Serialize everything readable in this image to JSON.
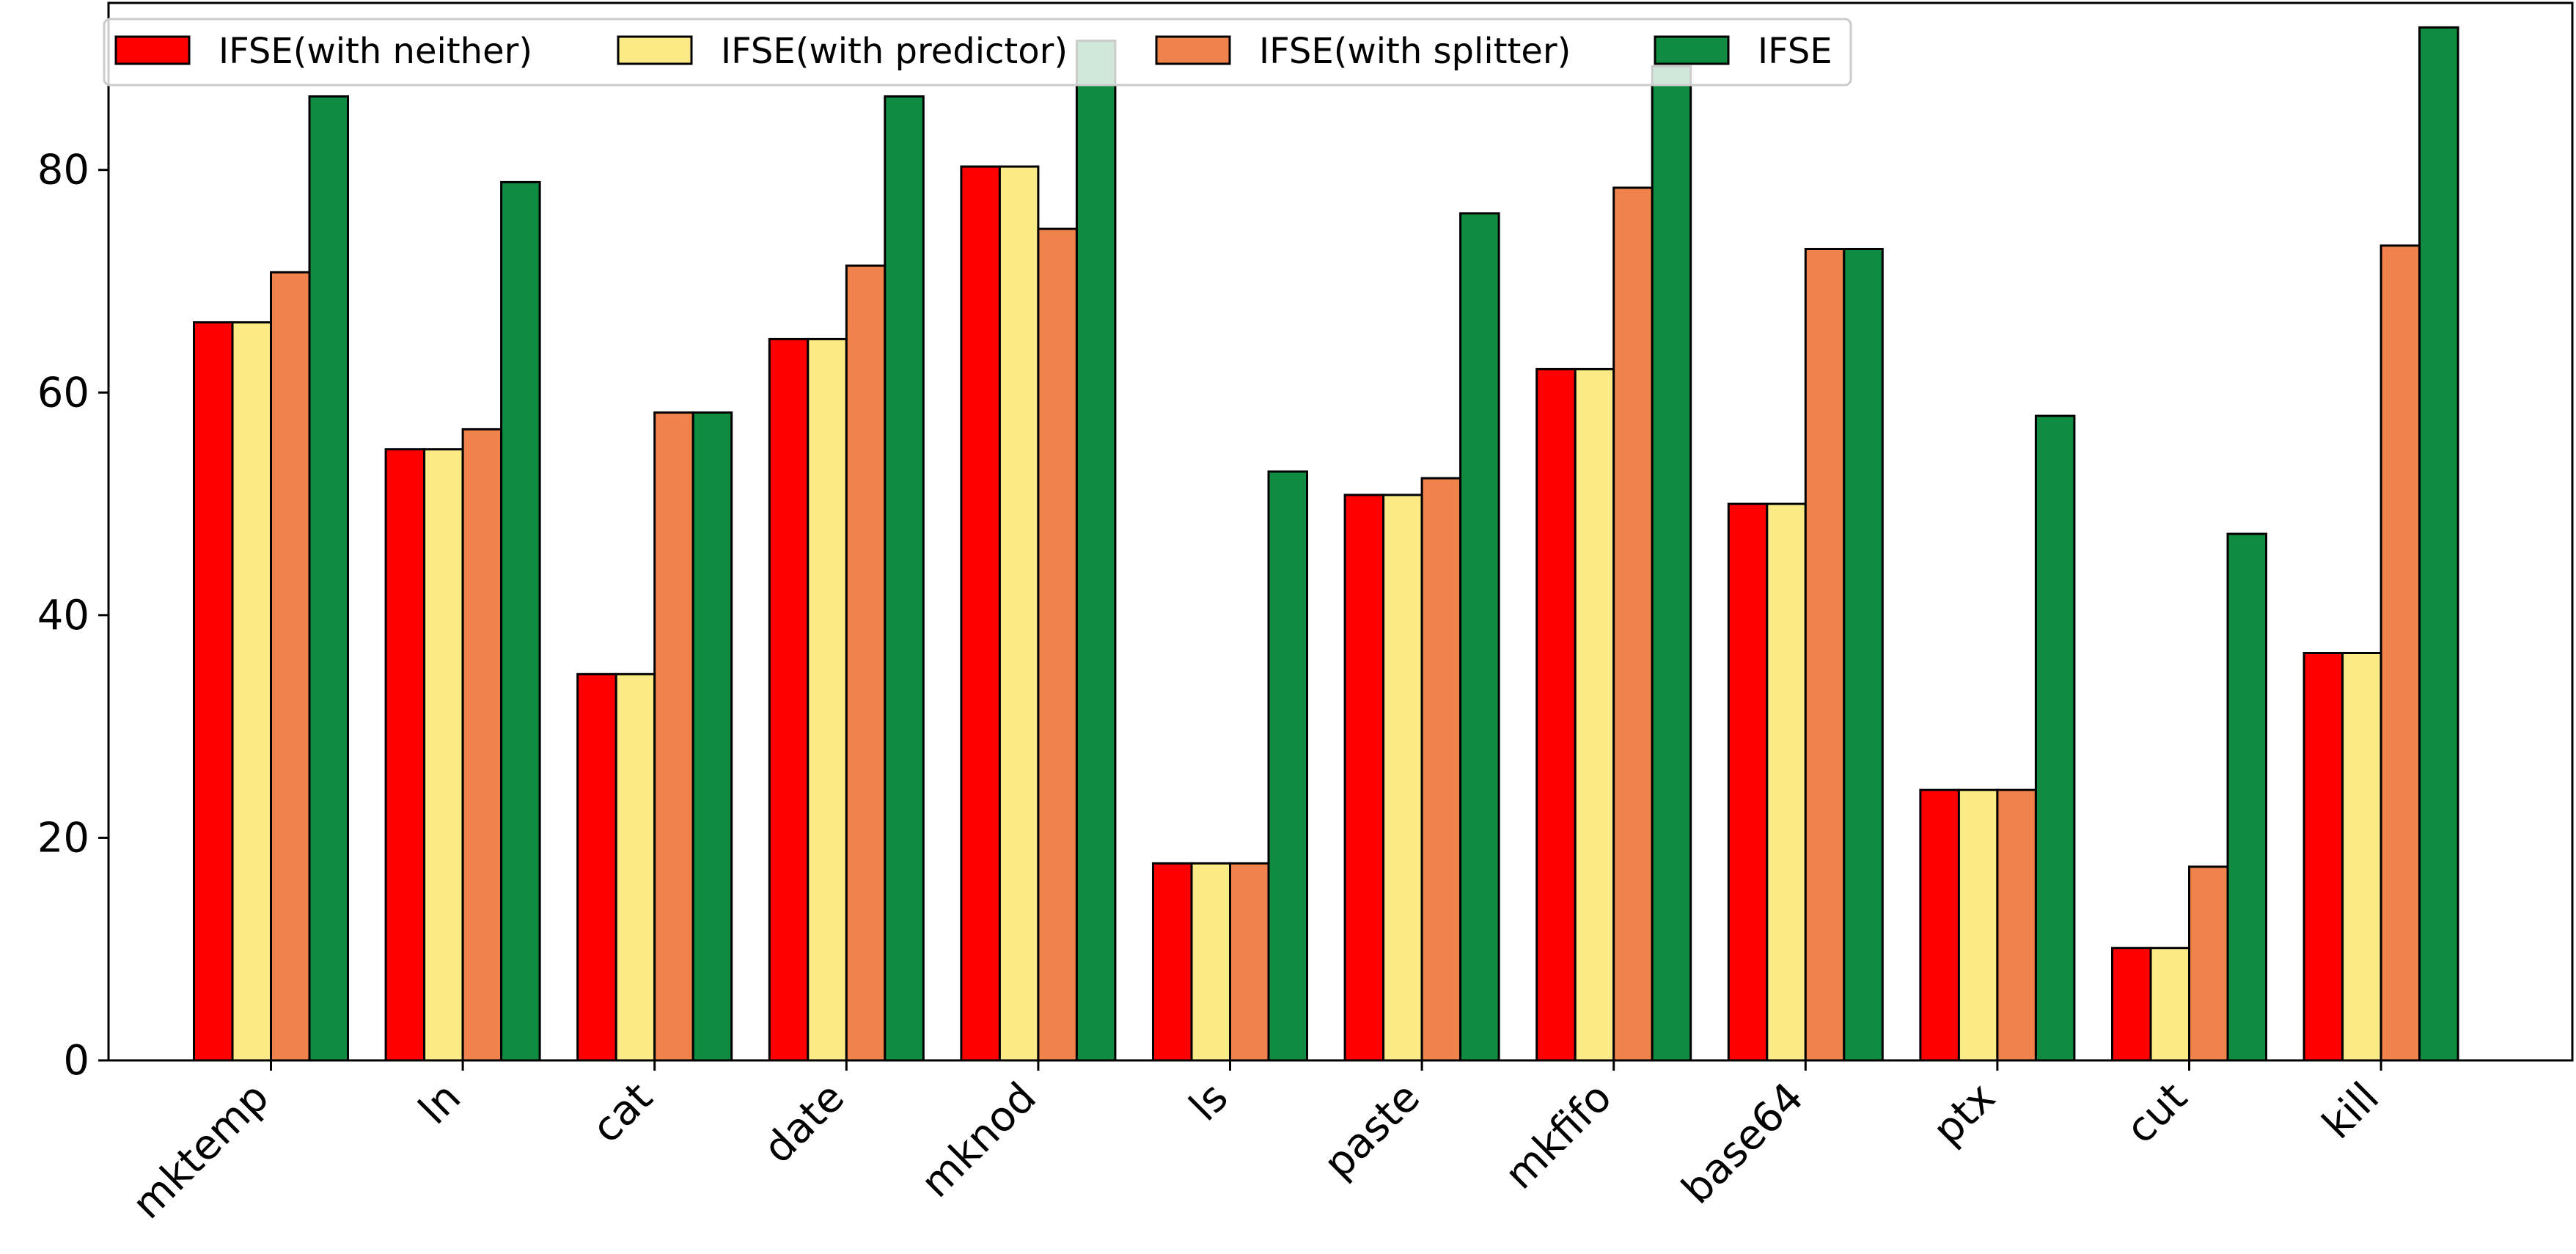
{
  "chart_data": {
    "type": "bar",
    "title": "",
    "xlabel": "",
    "ylabel": "",
    "categories": [
      "mktemp",
      "ln",
      "cat",
      "date",
      "mknod",
      "ls",
      "paste",
      "mkfifo",
      "base64",
      "ptx",
      "cut",
      "kill"
    ],
    "series": [
      {
        "name": "IFSE(with neither)",
        "color": "#ff0000",
        "values": [
          66.3,
          54.9,
          34.7,
          64.8,
          80.3,
          17.7,
          50.8,
          62.1,
          50.0,
          24.3,
          10.1,
          36.6
        ]
      },
      {
        "name": "IFSE(with predictor)",
        "color": "#faeb87",
        "values": [
          66.3,
          54.9,
          34.7,
          64.8,
          80.3,
          17.7,
          50.8,
          62.1,
          50.0,
          24.3,
          10.1,
          36.6
        ]
      },
      {
        "name": "IFSE(with splitter)",
        "color": "#f0834b",
        "values": [
          70.8,
          56.7,
          58.2,
          71.4,
          74.7,
          17.7,
          52.3,
          78.4,
          72.9,
          24.3,
          17.4,
          73.2
        ]
      },
      {
        "name": "IFSE",
        "color": "#0f8c41",
        "values": [
          86.6,
          78.9,
          58.2,
          86.6,
          91.6,
          52.9,
          76.1,
          89.3,
          72.9,
          57.9,
          47.3,
          92.8
        ]
      }
    ],
    "ylim": [
      0,
      95
    ],
    "yticks": [
      0,
      20,
      40,
      60,
      80
    ],
    "ytick_labels": [
      "0",
      "20",
      "40",
      "60",
      "80"
    ],
    "grid": false,
    "legend": {
      "placement": "top-left",
      "columns": 4
    }
  }
}
